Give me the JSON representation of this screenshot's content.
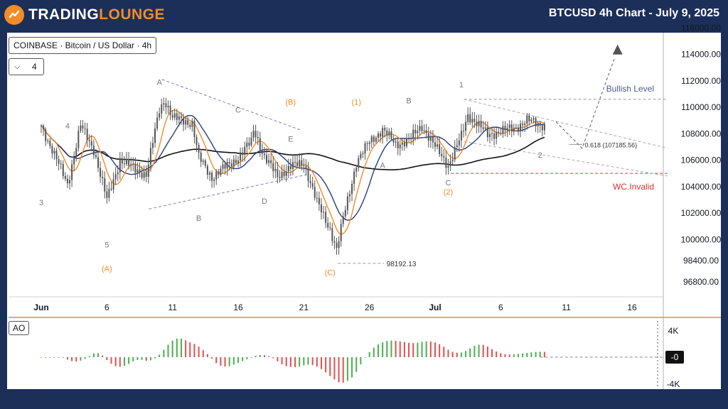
{
  "header": {
    "brand_part1": "TRADING",
    "brand_part2": "LOUNGE",
    "title": "BTCUSD 4h Chart - July 9, 2025"
  },
  "chart": {
    "symbol_label": "COINBASE · Bitcoin / US Dollar · 4h",
    "level_value": "4",
    "ao_label": "AO"
  },
  "colors": {
    "background": "#1c2f58",
    "brand_orange": "#f28c28",
    "candle": "#555555",
    "ema_orange": "#f28c28",
    "ema_blue": "#2a3d7c",
    "sma_black": "#111111",
    "bullish_level": "#4a5c8c",
    "invalid_level": "#e03030",
    "ao_up": "#4caf50",
    "ao_down": "#e05050"
  },
  "chart_data": {
    "type": "candlestick",
    "price_axis": {
      "ticks": [
        96800,
        98400,
        100000,
        102000,
        104000,
        106000,
        108000,
        110000,
        112000,
        114000,
        116000
      ],
      "tick_labels": [
        "96800.00",
        "98400.00",
        "100000.00",
        "102000.00",
        "104000.00",
        "106000.00",
        "108000.00",
        "110000.00",
        "112000.00",
        "114000.00",
        "116000.00"
      ]
    },
    "time_axis": {
      "labels": [
        "Jun",
        "6",
        "11",
        "16",
        "21",
        "26",
        "Jul",
        "6",
        "11",
        "16"
      ]
    },
    "ao_axis": {
      "labels": [
        "4K",
        "-0",
        "-4K"
      ]
    },
    "levels": {
      "bullish_label": "Bullish Level",
      "bullish_value": 110600,
      "invalid_label": "WC.Invalid",
      "invalid_value": 105000,
      "low_value": 98192.13,
      "low_label": "98192.13",
      "fib_value": 107185.56,
      "fib_label": "0.618 (107185.56)"
    },
    "wave_labels": [
      {
        "text": "A",
        "role": "gray",
        "date": "Jun 10",
        "price": 111700
      },
      {
        "text": "C",
        "role": "gray",
        "date": "Jun 16",
        "price": 109600
      },
      {
        "text": "(B)",
        "role": "orange",
        "date": "Jun 20",
        "price": 110200
      },
      {
        "text": "E",
        "role": "gray",
        "date": "Jun 20",
        "price": 107400
      },
      {
        "text": "(1)",
        "role": "orange",
        "date": "Jun 25",
        "price": 110200
      },
      {
        "text": "B",
        "role": "gray",
        "date": "Jun 29",
        "price": 110300
      },
      {
        "text": "1",
        "role": "gray",
        "date": "Jul 3",
        "price": 111500
      },
      {
        "text": "4",
        "role": "gray",
        "date": "Jun 3",
        "price": 108400
      },
      {
        "text": "3",
        "role": "gray",
        "date": "Jun 1",
        "price": 102600
      },
      {
        "text": "5",
        "role": "gray",
        "date": "Jun 6",
        "price": 99400
      },
      {
        "text": "(A)",
        "role": "orange",
        "date": "Jun 6",
        "price": 97600
      },
      {
        "text": "B",
        "role": "gray",
        "date": "Jun 13",
        "price": 101400
      },
      {
        "text": "D",
        "role": "gray",
        "date": "Jun 18",
        "price": 102700
      },
      {
        "text": "(C)",
        "role": "orange",
        "date": "Jun 23",
        "price": 97300
      },
      {
        "text": "A",
        "role": "gray",
        "date": "Jun 27",
        "price": 105400
      },
      {
        "text": "C",
        "role": "gray",
        "date": "Jul 2",
        "price": 104100
      },
      {
        "text": "(2)",
        "role": "orange",
        "date": "Jul 2",
        "price": 103400
      },
      {
        "text": "2",
        "role": "gray",
        "date": "Jul 9",
        "price": 106200
      }
    ]
  }
}
